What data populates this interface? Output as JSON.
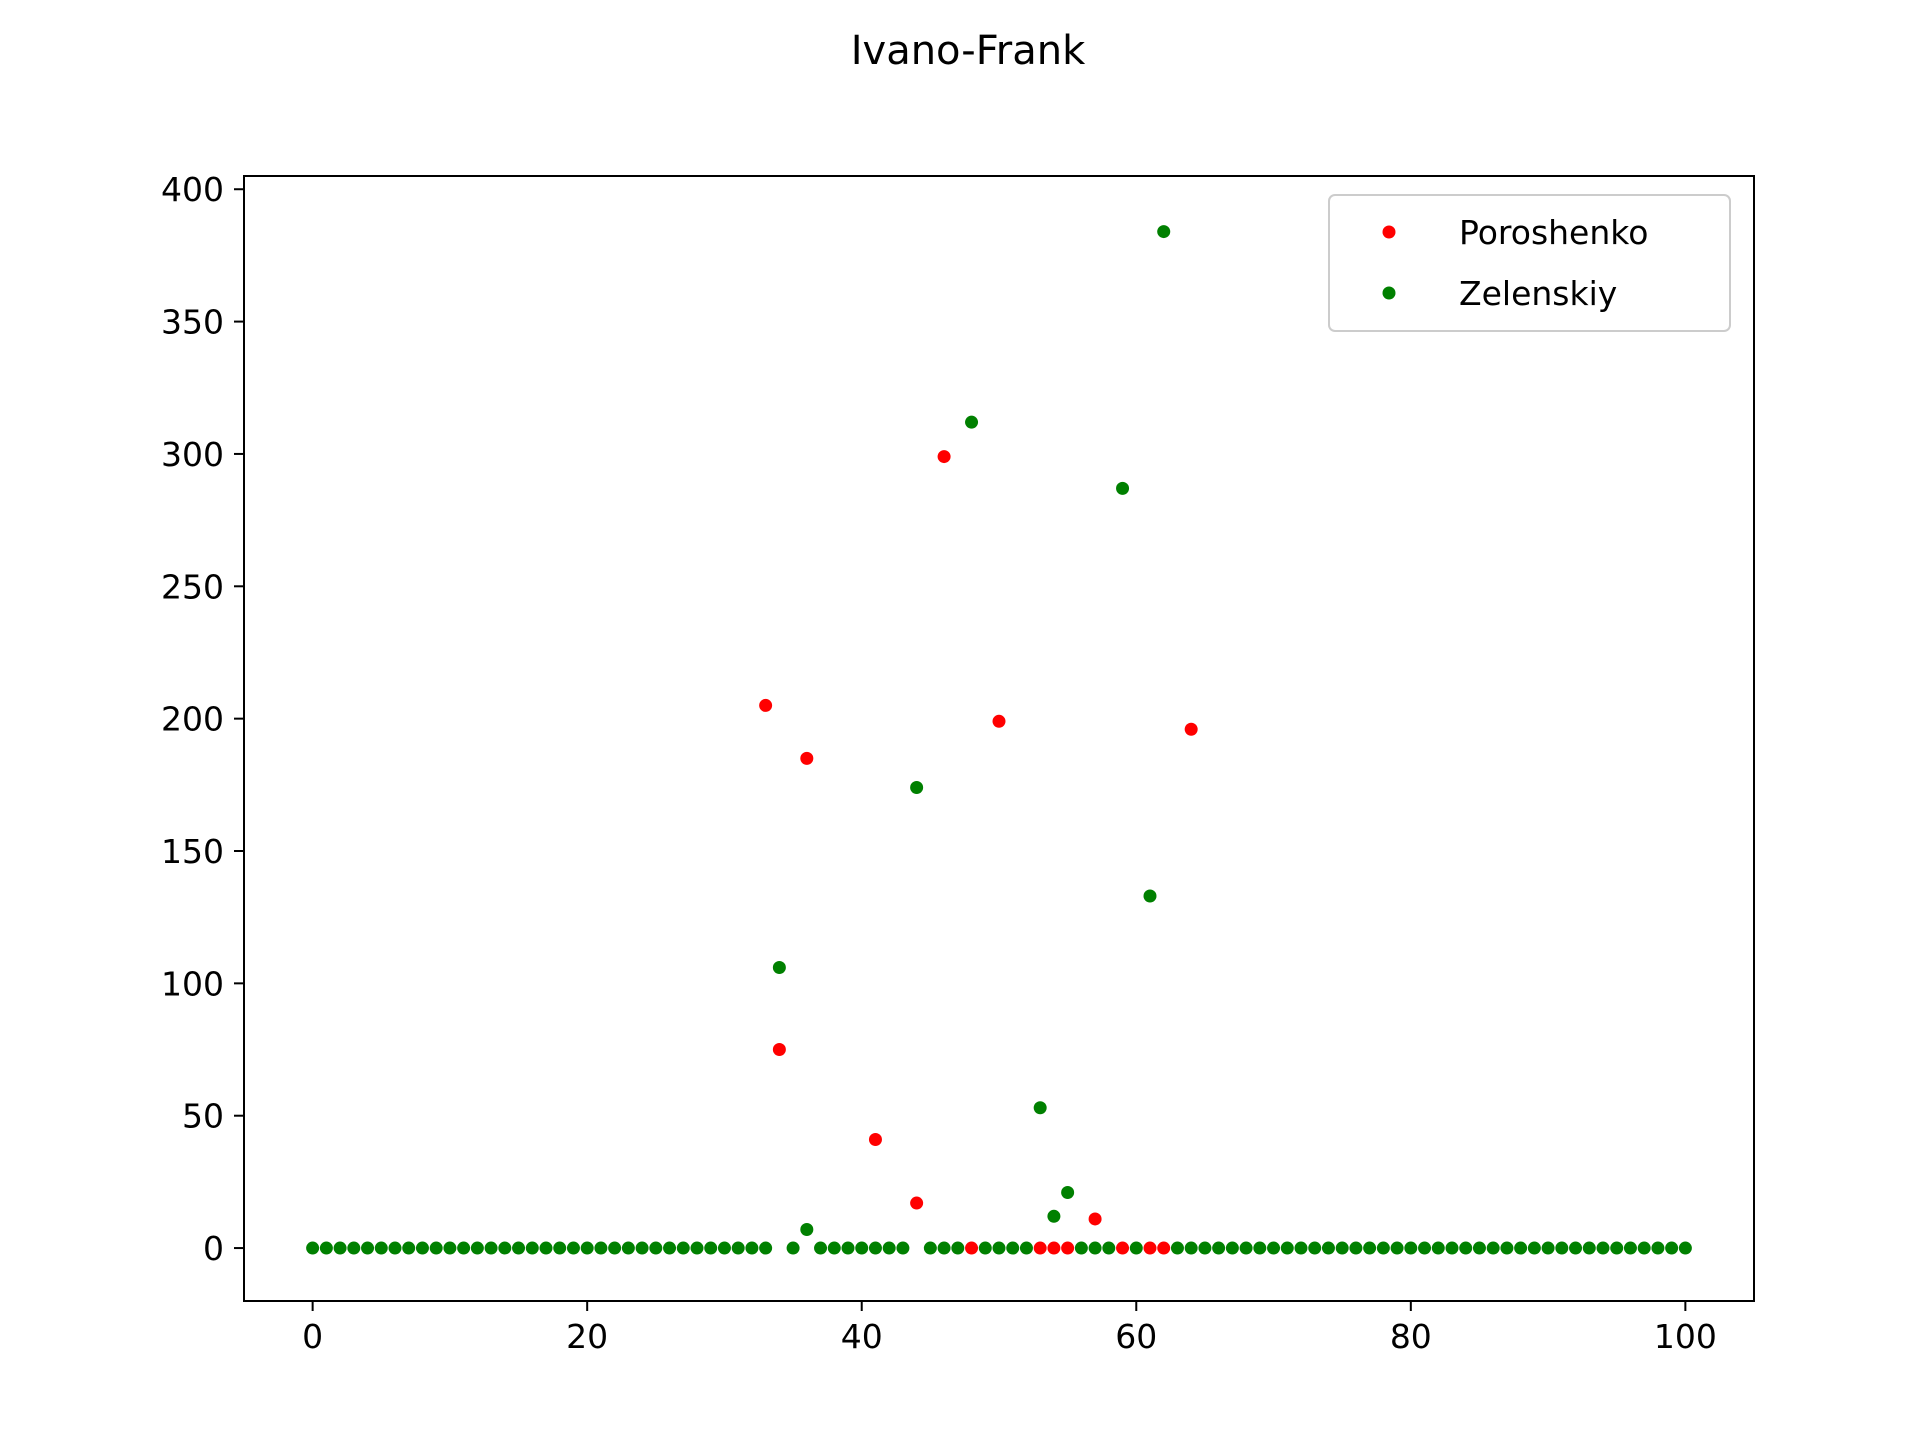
{
  "chart_data": {
    "type": "scatter",
    "title": "Ivano-Frank",
    "xlabel": "",
    "ylabel": "",
    "xlim": [
      -5,
      105
    ],
    "ylim": [
      -20,
      405
    ],
    "xticks": [
      0,
      20,
      40,
      60,
      80,
      100
    ],
    "yticks": [
      0,
      50,
      100,
      150,
      200,
      250,
      300,
      350,
      400
    ],
    "grid": false,
    "legend_position": "top-right",
    "series": [
      {
        "name": "Poroshenko",
        "color": "#ff0000",
        "points": [
          [
            33,
            205
          ],
          [
            34,
            75
          ],
          [
            36,
            185
          ],
          [
            41,
            41
          ],
          [
            44,
            17
          ],
          [
            46,
            299
          ],
          [
            48,
            0
          ],
          [
            50,
            199
          ],
          [
            53,
            0
          ],
          [
            54,
            0
          ],
          [
            55,
            0
          ],
          [
            57,
            11
          ],
          [
            59,
            0
          ],
          [
            61,
            0
          ],
          [
            62,
            0
          ],
          [
            64,
            196
          ]
        ]
      },
      {
        "name": "Zelenskiy",
        "color": "#008000",
        "points": [
          [
            0,
            0
          ],
          [
            1,
            0
          ],
          [
            2,
            0
          ],
          [
            3,
            0
          ],
          [
            4,
            0
          ],
          [
            5,
            0
          ],
          [
            6,
            0
          ],
          [
            7,
            0
          ],
          [
            8,
            0
          ],
          [
            9,
            0
          ],
          [
            10,
            0
          ],
          [
            11,
            0
          ],
          [
            12,
            0
          ],
          [
            13,
            0
          ],
          [
            14,
            0
          ],
          [
            15,
            0
          ],
          [
            16,
            0
          ],
          [
            17,
            0
          ],
          [
            18,
            0
          ],
          [
            19,
            0
          ],
          [
            20,
            0
          ],
          [
            21,
            0
          ],
          [
            22,
            0
          ],
          [
            23,
            0
          ],
          [
            24,
            0
          ],
          [
            25,
            0
          ],
          [
            26,
            0
          ],
          [
            27,
            0
          ],
          [
            28,
            0
          ],
          [
            29,
            0
          ],
          [
            30,
            0
          ],
          [
            31,
            0
          ],
          [
            32,
            0
          ],
          [
            33,
            0
          ],
          [
            34,
            106
          ],
          [
            35,
            0
          ],
          [
            36,
            7
          ],
          [
            37,
            0
          ],
          [
            38,
            0
          ],
          [
            39,
            0
          ],
          [
            40,
            0
          ],
          [
            41,
            0
          ],
          [
            42,
            0
          ],
          [
            43,
            0
          ],
          [
            44,
            174
          ],
          [
            45,
            0
          ],
          [
            46,
            0
          ],
          [
            47,
            0
          ],
          [
            48,
            312
          ],
          [
            49,
            0
          ],
          [
            50,
            0
          ],
          [
            51,
            0
          ],
          [
            52,
            0
          ],
          [
            53,
            53
          ],
          [
            54,
            12
          ],
          [
            55,
            21
          ],
          [
            56,
            0
          ],
          [
            57,
            0
          ],
          [
            58,
            0
          ],
          [
            59,
            287
          ],
          [
            60,
            0
          ],
          [
            61,
            133
          ],
          [
            62,
            384
          ],
          [
            63,
            0
          ],
          [
            64,
            0
          ],
          [
            65,
            0
          ],
          [
            66,
            0
          ],
          [
            67,
            0
          ],
          [
            68,
            0
          ],
          [
            69,
            0
          ],
          [
            70,
            0
          ],
          [
            71,
            0
          ],
          [
            72,
            0
          ],
          [
            73,
            0
          ],
          [
            74,
            0
          ],
          [
            75,
            0
          ],
          [
            76,
            0
          ],
          [
            77,
            0
          ],
          [
            78,
            0
          ],
          [
            79,
            0
          ],
          [
            80,
            0
          ],
          [
            81,
            0
          ],
          [
            82,
            0
          ],
          [
            83,
            0
          ],
          [
            84,
            0
          ],
          [
            85,
            0
          ],
          [
            86,
            0
          ],
          [
            87,
            0
          ],
          [
            88,
            0
          ],
          [
            89,
            0
          ],
          [
            90,
            0
          ],
          [
            91,
            0
          ],
          [
            92,
            0
          ],
          [
            93,
            0
          ],
          [
            94,
            0
          ],
          [
            95,
            0
          ],
          [
            96,
            0
          ],
          [
            97,
            0
          ],
          [
            98,
            0
          ],
          [
            99,
            0
          ],
          [
            100,
            0
          ]
        ]
      }
    ]
  }
}
